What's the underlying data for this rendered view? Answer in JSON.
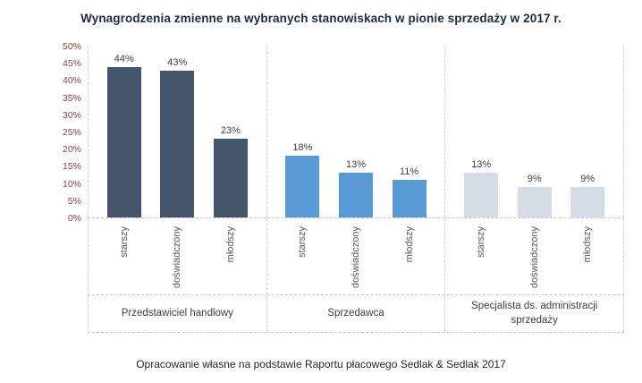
{
  "footer": "Opracowanie własne na podstawie Raportu płacowego Sedlak & Sedlak 2017",
  "colors": {
    "title": "#1e2b3a",
    "y_axis_labels": "#8a4040",
    "category_labels": "#595959",
    "bar_series_1": "#44546a",
    "bar_series_2": "#5b9bd5",
    "bar_series_3": "#d6dce5"
  },
  "chart_data": {
    "type": "bar",
    "title": "Wynagrodzenia zmienne na wybranych stanowiskach w pionie sprzedaży w 2017 r.",
    "xlabel": "",
    "ylabel": "",
    "ylim": [
      0,
      50
    ],
    "ytick_step": 5,
    "ytick_labels": [
      "0%",
      "5%",
      "10%",
      "15%",
      "20%",
      "25%",
      "30%",
      "35%",
      "40%",
      "45%",
      "50%"
    ],
    "grid": false,
    "legend": "none",
    "groups": [
      {
        "label": "Przedstawiciel handlowy",
        "color": "#44546a",
        "bars": [
          {
            "category": "starszy",
            "value": 44,
            "label": "44%"
          },
          {
            "category": "doświadczony",
            "value": 43,
            "label": "43%"
          },
          {
            "category": "młodszy",
            "value": 23,
            "label": "23%"
          }
        ]
      },
      {
        "label": "Sprzedawca",
        "color": "#5b9bd5",
        "bars": [
          {
            "category": "starszy",
            "value": 18,
            "label": "18%"
          },
          {
            "category": "doświadczony",
            "value": 13,
            "label": "13%"
          },
          {
            "category": "młodszy",
            "value": 11,
            "label": "11%"
          }
        ]
      },
      {
        "label": "Specjalista ds. administracji sprzedaży",
        "color": "#d6dce5",
        "bars": [
          {
            "category": "starszy",
            "value": 13,
            "label": "13%"
          },
          {
            "category": "doświadczony",
            "value": 9,
            "label": "9%"
          },
          {
            "category": "młodszy",
            "value": 9,
            "label": "9%"
          }
        ]
      }
    ]
  }
}
